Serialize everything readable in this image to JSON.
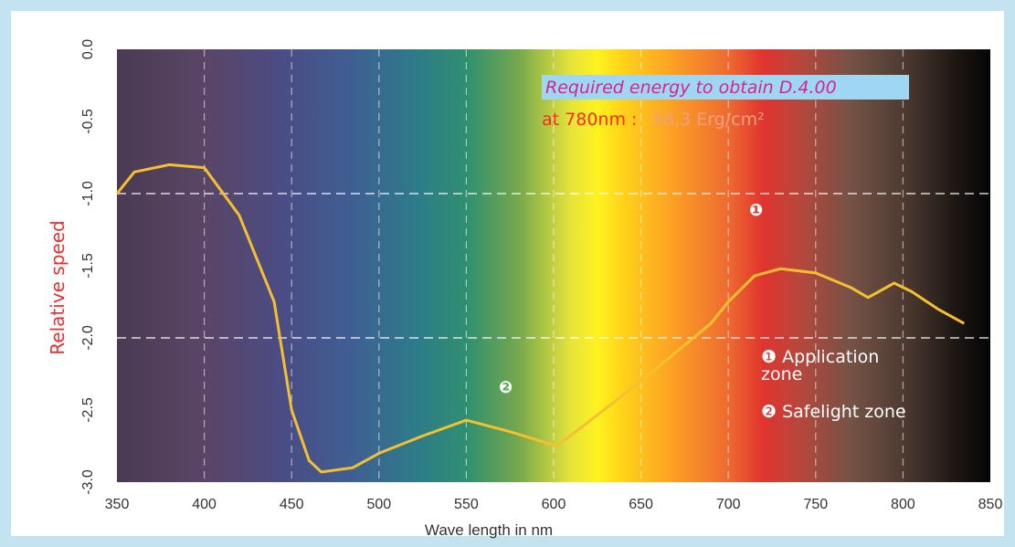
{
  "chart_data": {
    "type": "line",
    "ylabel": "Relative speed",
    "xlabel": "Wave length in nm",
    "xlim": [
      350,
      850
    ],
    "ylim": [
      -3.0,
      0.0
    ],
    "x_ticks": [
      "350",
      "400",
      "450",
      "500",
      "550",
      "600",
      "650",
      "700",
      "750",
      "800",
      "850"
    ],
    "y_ticks": [
      "0.0",
      "-0.5",
      "-1.0",
      "-1.5",
      "-2.0",
      "-2.5",
      "-3.0"
    ],
    "x_tick_values": [
      350,
      400,
      450,
      500,
      550,
      600,
      650,
      700,
      750,
      800,
      850
    ],
    "y_tick_values": [
      0.0,
      -0.5,
      -1.0,
      -1.5,
      -2.0,
      -2.5,
      -3.0
    ],
    "reference_lines_y": [
      -1.0,
      -2.0
    ],
    "grid": true,
    "line_color": "#f5c030",
    "series": [
      {
        "x": [
          350,
          360,
          380,
          400,
          420,
          440,
          450,
          460,
          467,
          485,
          500,
          525,
          550,
          575,
          602,
          650,
          690,
          700,
          715,
          730,
          750,
          770,
          780,
          795,
          805,
          820,
          835
        ],
        "y": [
          -1.0,
          -0.85,
          -0.8,
          -0.82,
          -1.15,
          -1.75,
          -2.5,
          -2.85,
          -2.93,
          -2.9,
          -2.8,
          -2.68,
          -2.57,
          -2.65,
          -2.75,
          -2.3,
          -1.9,
          -1.75,
          -1.57,
          -1.52,
          -1.55,
          -1.65,
          -1.72,
          -1.62,
          -1.68,
          -1.8,
          -1.9
        ]
      }
    ],
    "annotations": {
      "title": "Required energy to obtain D.4.00",
      "at_label": "at ",
      "at_value": "780",
      "at_unit": "nm :",
      "energy": "58,3 Erg/cm²",
      "zone1_marker": "❶",
      "zone2_marker": "❷",
      "legend1_line1": "❶ Application",
      "legend1_line2": "zone",
      "legend2": "❷ Safelight zone"
    },
    "colors": {
      "title_background": "#9fd7f2",
      "frame": "#c3e3f0"
    }
  }
}
